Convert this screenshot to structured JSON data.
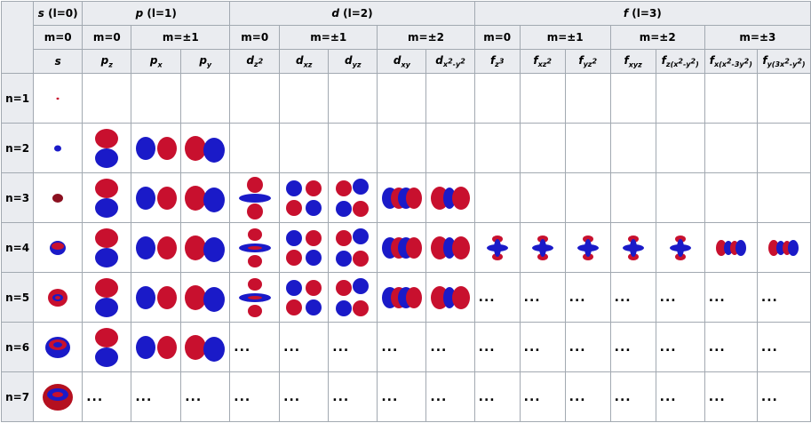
{
  "colors": {
    "positive": "#c8102e",
    "negative": "#1a1ac8",
    "header_bg": "#eaecf0",
    "border": "#a2a9b1"
  },
  "groups": [
    {
      "label_italic": "s",
      "label_rest": " (l=0)"
    },
    {
      "label_italic": "p",
      "label_rest": " (l=1)"
    },
    {
      "label_italic": "d",
      "label_rest": " (l=2)"
    },
    {
      "label_italic": "f",
      "label_rest": " (l=3)"
    }
  ],
  "m_values": [
    "m=0",
    "m=0",
    "m=±1",
    "m=0",
    "m=±1",
    "m=±2",
    "m=0",
    "m=±1",
    "m=±2",
    "m=±3"
  ],
  "orbitals": [
    {
      "base": "s",
      "sub": "",
      "sup": "",
      "sub2": ""
    },
    {
      "base": "p",
      "sub": "z"
    },
    {
      "base": "p",
      "sub": "x"
    },
    {
      "base": "p",
      "sub": "y"
    },
    {
      "base": "d",
      "sub": "z",
      "sup": "2"
    },
    {
      "base": "d",
      "sub": "xz"
    },
    {
      "base": "d",
      "sub": "yz"
    },
    {
      "base": "d",
      "sub": "xy"
    },
    {
      "base": "d",
      "sub": "x",
      "sup": "2",
      "tail": "-y",
      "sup2": "2"
    },
    {
      "base": "f",
      "sub": "z",
      "sup": "3"
    },
    {
      "base": "f",
      "sub": "xz",
      "sup": "2"
    },
    {
      "base": "f",
      "sub": "yz",
      "sup": "2"
    },
    {
      "base": "f",
      "sub": "xyz"
    },
    {
      "base": "f",
      "sub": "z(x",
      "sup": "2",
      "tail": "-y",
      "sup2": "2",
      "end": ")"
    },
    {
      "base": "f",
      "sub": "x(x",
      "sup": "2",
      "tail": "-3y",
      "sup2": "2",
      "end": ")"
    },
    {
      "base": "f",
      "sub": "y(3x",
      "sup": "2",
      "tail": "-y",
      "sup2": "2",
      "end": ")"
    }
  ],
  "rows": [
    {
      "label": "n=1",
      "cells": [
        "s1",
        "",
        "",
        "",
        "",
        "",
        "",
        "",
        "",
        "",
        "",
        "",
        "",
        "",
        "",
        ""
      ]
    },
    {
      "label": "n=2",
      "cells": [
        "s2",
        "pz",
        "px",
        "py",
        "",
        "",
        "",
        "",
        "",
        "",
        "",
        "",
        "",
        "",
        "",
        ""
      ]
    },
    {
      "label": "n=3",
      "cells": [
        "s3",
        "pz",
        "px",
        "py",
        "dz",
        "dxz",
        "dyz",
        "dxy",
        "dx2",
        "",
        "",
        "",
        "",
        "",
        "",
        ""
      ]
    },
    {
      "label": "n=4",
      "cells": [
        "s4",
        "pz",
        "px",
        "py",
        "dz2",
        "dxz",
        "dyz",
        "dxy",
        "dx2",
        "f",
        "f",
        "f",
        "f",
        "f",
        "fx",
        "fx"
      ]
    },
    {
      "label": "n=5",
      "cells": [
        "s5",
        "pz",
        "px",
        "py",
        "dz2",
        "dxz",
        "dyz",
        "dxy",
        "dx2",
        "...",
        "...",
        "...",
        "...",
        "...",
        "...",
        "..."
      ]
    },
    {
      "label": "n=6",
      "cells": [
        "s6",
        "pz",
        "px",
        "py",
        "...",
        "...",
        "...",
        "...",
        "...",
        "...",
        "...",
        "...",
        "...",
        "...",
        "...",
        "..."
      ]
    },
    {
      "label": "n=7",
      "cells": [
        "s7",
        "...",
        "...",
        "...",
        "...",
        "...",
        "...",
        "...",
        "...",
        "...",
        "...",
        "...",
        "...",
        "...",
        "...",
        "..."
      ]
    }
  ]
}
